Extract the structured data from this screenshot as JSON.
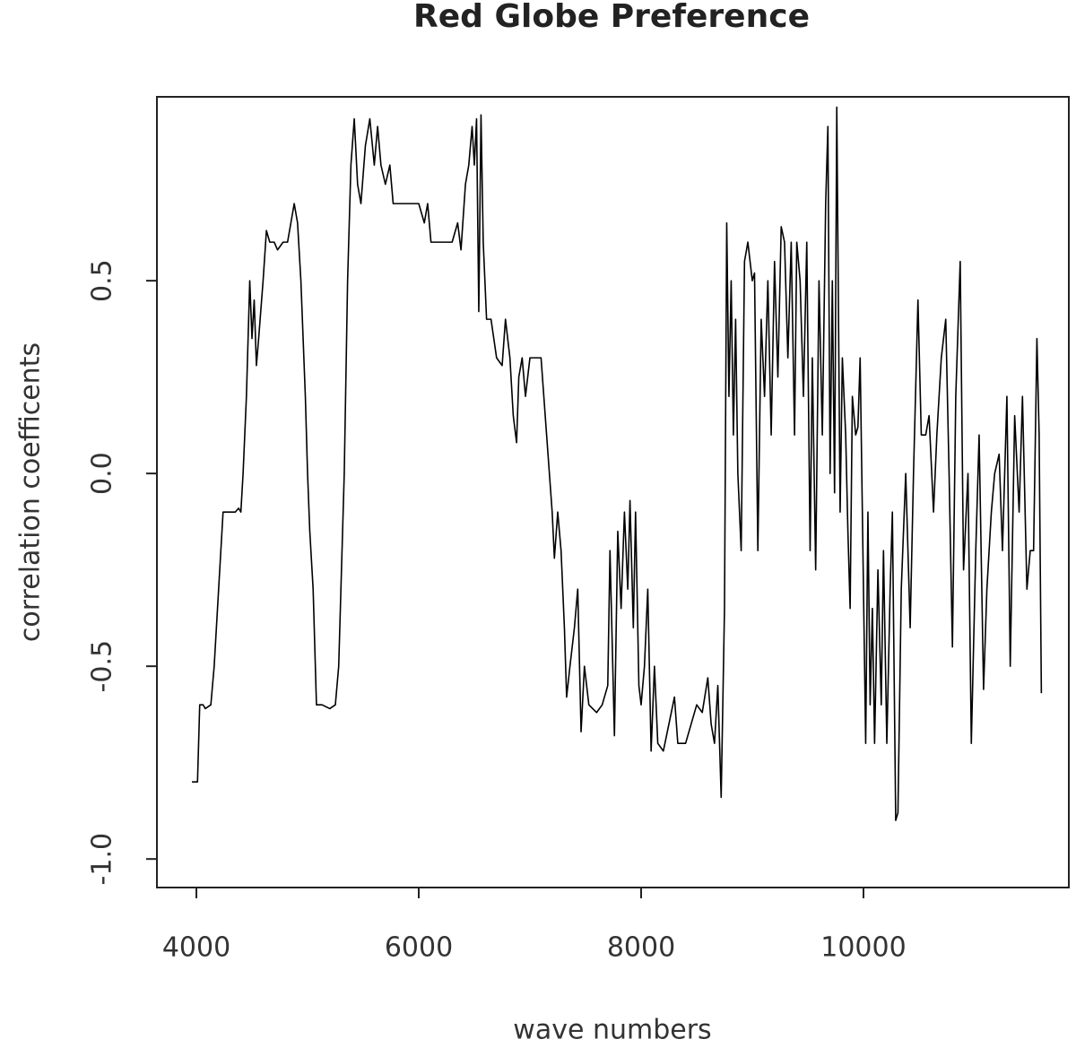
{
  "chart_data": {
    "type": "line",
    "title": "Red Globe Preference",
    "x_label": "wave numbers",
    "y_label": "correlation coefficents",
    "color": "#000000",
    "xlim": [
      3645,
      11847
    ],
    "ylim": [
      -1.074,
      0.977
    ],
    "xticks": [
      4000,
      6000,
      8000,
      10000
    ],
    "yticks": [
      {
        "value": -1,
        "label": "-1.0"
      },
      -0.5,
      {
        "value": 0,
        "label": "0.0"
      },
      0.5
    ],
    "x": [
      3960,
      4010,
      4020,
      4030,
      4060,
      4080,
      4130,
      4160,
      4200,
      4240,
      4300,
      4350,
      4380,
      4400,
      4420,
      4450,
      4480,
      4500,
      4520,
      4540,
      4560,
      4600,
      4630,
      4660,
      4700,
      4730,
      4780,
      4820,
      4850,
      4880,
      4910,
      4940,
      4980,
      5000,
      5020,
      5050,
      5080,
      5130,
      5200,
      5250,
      5280,
      5300,
      5330,
      5360,
      5390,
      5420,
      5450,
      5480,
      5520,
      5560,
      5600,
      5630,
      5660,
      5700,
      5740,
      5770,
      5830,
      5900,
      6000,
      6050,
      6080,
      6110,
      6150,
      6200,
      6250,
      6300,
      6350,
      6380,
      6420,
      6450,
      6480,
      6500,
      6520,
      6540,
      6560,
      6580,
      6610,
      6650,
      6700,
      6750,
      6780,
      6820,
      6850,
      6880,
      6900,
      6930,
      6960,
      7000,
      7050,
      7100,
      7150,
      7200,
      7220,
      7250,
      7280,
      7310,
      7330,
      7360,
      7400,
      7430,
      7460,
      7490,
      7530,
      7600,
      7650,
      7700,
      7720,
      7760,
      7790,
      7820,
      7850,
      7880,
      7900,
      7930,
      7950,
      7980,
      8000,
      8030,
      8060,
      8090,
      8120,
      8150,
      8200,
      8250,
      8300,
      8330,
      8400,
      8450,
      8500,
      8550,
      8600,
      8630,
      8660,
      8690,
      8720,
      8750,
      8770,
      8790,
      8810,
      8830,
      8850,
      8870,
      8900,
      8930,
      8960,
      9000,
      9020,
      9050,
      9080,
      9110,
      9140,
      9170,
      9200,
      9230,
      9260,
      9290,
      9320,
      9350,
      9380,
      9400,
      9430,
      9460,
      9490,
      9520,
      9540,
      9570,
      9600,
      9630,
      9660,
      9680,
      9700,
      9720,
      9740,
      9760,
      9790,
      9810,
      9840,
      9860,
      9880,
      9900,
      9930,
      9950,
      9970,
      9990,
      10020,
      10040,
      10060,
      10080,
      10100,
      10130,
      10160,
      10180,
      10210,
      10240,
      10260,
      10290,
      10310,
      10340,
      10380,
      10420,
      10450,
      10490,
      10520,
      10560,
      10590,
      10630,
      10660,
      10700,
      10740,
      10770,
      10800,
      10830,
      10870,
      10900,
      10940,
      10970,
      11010,
      11040,
      11080,
      11110,
      11150,
      11180,
      11220,
      11250,
      11290,
      11320,
      11360,
      11400,
      11430,
      11470,
      11500,
      11530,
      11560,
      11580,
      11600
    ],
    "values": [
      -0.8,
      -0.8,
      -0.7,
      -0.6,
      -0.6,
      -0.61,
      -0.6,
      -0.5,
      -0.3,
      -0.1,
      -0.1,
      -0.1,
      -0.09,
      -0.1,
      0.0,
      0.2,
      0.5,
      0.35,
      0.45,
      0.28,
      0.35,
      0.5,
      0.63,
      0.6,
      0.6,
      0.58,
      0.6,
      0.6,
      0.65,
      0.7,
      0.65,
      0.5,
      0.2,
      0.0,
      -0.15,
      -0.3,
      -0.6,
      -0.6,
      -0.61,
      -0.6,
      -0.5,
      -0.3,
      0.0,
      0.5,
      0.8,
      0.92,
      0.75,
      0.7,
      0.85,
      0.92,
      0.8,
      0.9,
      0.8,
      0.75,
      0.8,
      0.7,
      0.7,
      0.7,
      0.7,
      0.65,
      0.7,
      0.6,
      0.6,
      0.6,
      0.6,
      0.6,
      0.65,
      0.58,
      0.75,
      0.8,
      0.9,
      0.8,
      0.92,
      0.42,
      0.93,
      0.6,
      0.4,
      0.4,
      0.3,
      0.28,
      0.4,
      0.3,
      0.15,
      0.08,
      0.25,
      0.3,
      0.2,
      0.3,
      0.3,
      0.3,
      0.1,
      -0.1,
      -0.22,
      -0.1,
      -0.2,
      -0.4,
      -0.58,
      -0.5,
      -0.4,
      -0.3,
      -0.67,
      -0.5,
      -0.6,
      -0.62,
      -0.6,
      -0.55,
      -0.2,
      -0.68,
      -0.15,
      -0.35,
      -0.1,
      -0.3,
      -0.07,
      -0.4,
      -0.1,
      -0.55,
      -0.6,
      -0.5,
      -0.3,
      -0.72,
      -0.5,
      -0.7,
      -0.72,
      -0.65,
      -0.58,
      -0.7,
      -0.7,
      -0.65,
      -0.6,
      -0.62,
      -0.53,
      -0.65,
      -0.7,
      -0.55,
      -0.84,
      -0.35,
      0.65,
      0.2,
      0.5,
      0.1,
      0.4,
      0.0,
      -0.2,
      0.55,
      0.6,
      0.5,
      0.52,
      -0.2,
      0.4,
      0.2,
      0.5,
      0.1,
      0.55,
      0.25,
      0.64,
      0.6,
      0.3,
      0.6,
      0.1,
      0.6,
      0.5,
      0.2,
      0.6,
      -0.2,
      0.3,
      -0.25,
      0.5,
      0.1,
      0.7,
      0.9,
      0.0,
      0.5,
      -0.05,
      0.95,
      -0.1,
      0.3,
      0.1,
      -0.15,
      -0.35,
      0.2,
      0.1,
      0.12,
      0.3,
      -0.1,
      -0.7,
      -0.1,
      -0.6,
      -0.35,
      -0.7,
      -0.25,
      -0.6,
      -0.2,
      -0.7,
      -0.3,
      -0.1,
      -0.9,
      -0.88,
      -0.3,
      0.0,
      -0.4,
      0.0,
      0.45,
      0.1,
      0.1,
      0.15,
      -0.1,
      0.1,
      0.3,
      0.4,
      0.0,
      -0.45,
      0.2,
      0.55,
      -0.25,
      0.0,
      -0.7,
      -0.2,
      0.1,
      -0.56,
      -0.3,
      -0.1,
      0.0,
      0.05,
      -0.2,
      0.2,
      -0.5,
      0.15,
      -0.1,
      0.2,
      -0.3,
      -0.2,
      -0.2,
      0.35,
      0.1,
      -0.57
    ]
  }
}
